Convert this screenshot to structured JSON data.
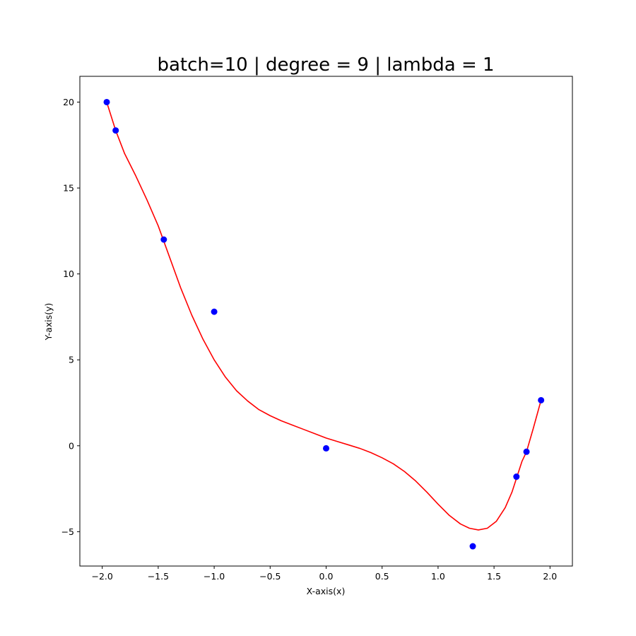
{
  "chart_data": {
    "type": "scatter",
    "title": "batch=10 | degree = 9 | lambda = 1",
    "xlabel": "X-axis(x)",
    "ylabel": "Y-axis(y)",
    "xlim": [
      -2.2,
      2.2
    ],
    "ylim": [
      -7.0,
      21.5
    ],
    "xticks": [
      -2.0,
      -1.5,
      -1.0,
      -0.5,
      0.0,
      0.5,
      1.0,
      1.5,
      2.0
    ],
    "xtick_labels": [
      "−2.0",
      "−1.5",
      "−1.0",
      "−0.5",
      "0.0",
      "0.5",
      "1.0",
      "1.5",
      "2.0"
    ],
    "yticks": [
      -5,
      0,
      5,
      10,
      15,
      20
    ],
    "ytick_labels": [
      "−5",
      "0",
      "5",
      "10",
      "15",
      "20"
    ],
    "grid": false,
    "series": [
      {
        "kind": "scatter",
        "color": "#0000ff",
        "points": [
          {
            "x": -1.96,
            "y": 20.0
          },
          {
            "x": -1.88,
            "y": 18.35
          },
          {
            "x": -1.45,
            "y": 12.0
          },
          {
            "x": -1.0,
            "y": 7.8
          },
          {
            "x": 0.0,
            "y": -0.15
          },
          {
            "x": 1.31,
            "y": -5.85
          },
          {
            "x": 1.7,
            "y": -1.8
          },
          {
            "x": 1.79,
            "y": -0.35
          },
          {
            "x": 1.92,
            "y": 2.65
          }
        ]
      },
      {
        "kind": "line",
        "color": "#ff0000",
        "points": [
          {
            "x": -1.96,
            "y": 20.0
          },
          {
            "x": -1.88,
            "y": 18.35
          },
          {
            "x": -1.8,
            "y": 17.0
          },
          {
            "x": -1.7,
            "y": 15.7
          },
          {
            "x": -1.6,
            "y": 14.3
          },
          {
            "x": -1.5,
            "y": 12.8
          },
          {
            "x": -1.4,
            "y": 11.0
          },
          {
            "x": -1.3,
            "y": 9.2
          },
          {
            "x": -1.2,
            "y": 7.6
          },
          {
            "x": -1.1,
            "y": 6.2
          },
          {
            "x": -1.0,
            "y": 5.0
          },
          {
            "x": -0.9,
            "y": 4.0
          },
          {
            "x": -0.8,
            "y": 3.2
          },
          {
            "x": -0.7,
            "y": 2.6
          },
          {
            "x": -0.6,
            "y": 2.1
          },
          {
            "x": -0.5,
            "y": 1.75
          },
          {
            "x": -0.4,
            "y": 1.45
          },
          {
            "x": -0.3,
            "y": 1.2
          },
          {
            "x": -0.2,
            "y": 0.95
          },
          {
            "x": -0.1,
            "y": 0.7
          },
          {
            "x": 0.0,
            "y": 0.45
          },
          {
            "x": 0.1,
            "y": 0.25
          },
          {
            "x": 0.2,
            "y": 0.05
          },
          {
            "x": 0.3,
            "y": -0.15
          },
          {
            "x": 0.4,
            "y": -0.4
          },
          {
            "x": 0.5,
            "y": -0.7
          },
          {
            "x": 0.6,
            "y": -1.05
          },
          {
            "x": 0.7,
            "y": -1.5
          },
          {
            "x": 0.8,
            "y": -2.05
          },
          {
            "x": 0.9,
            "y": -2.7
          },
          {
            "x": 1.0,
            "y": -3.4
          },
          {
            "x": 1.1,
            "y": -4.05
          },
          {
            "x": 1.2,
            "y": -4.55
          },
          {
            "x": 1.28,
            "y": -4.8
          },
          {
            "x": 1.36,
            "y": -4.9
          },
          {
            "x": 1.44,
            "y": -4.8
          },
          {
            "x": 1.52,
            "y": -4.4
          },
          {
            "x": 1.6,
            "y": -3.6
          },
          {
            "x": 1.66,
            "y": -2.7
          },
          {
            "x": 1.7,
            "y": -1.9
          },
          {
            "x": 1.75,
            "y": -0.9
          },
          {
            "x": 1.79,
            "y": -0.35
          },
          {
            "x": 1.85,
            "y": 1.0
          },
          {
            "x": 1.92,
            "y": 2.65
          }
        ]
      }
    ]
  }
}
